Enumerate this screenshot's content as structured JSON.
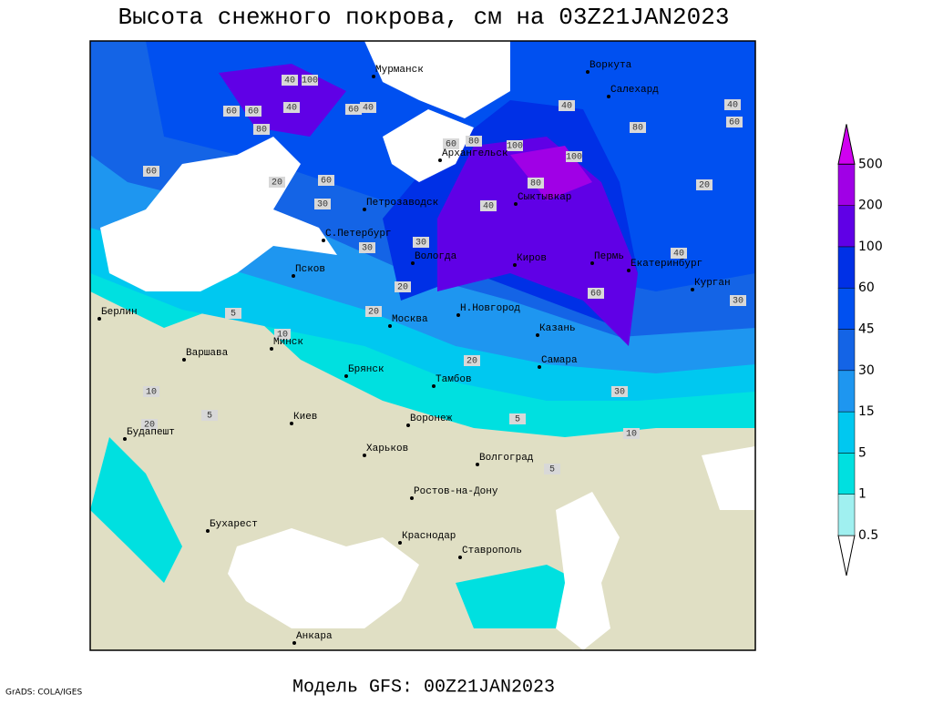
{
  "title": "Высота снежного покрова, см на 03Z21JAN2023",
  "footer": "Модель GFS: 00Z21JAN2023",
  "credit": "GrADS: COLA/IGES",
  "legend": {
    "levels": [
      0.5,
      1,
      5,
      15,
      30,
      45,
      60,
      100,
      200,
      500
    ],
    "colors": [
      "#ffffff",
      "#a0f0f0",
      "#00e0e0",
      "#00c8f0",
      "#1e96f0",
      "#1464e6",
      "#0050f0",
      "#0030e6",
      "#6000e6",
      "#a000e6",
      "#d000f0"
    ]
  },
  "cities": [
    "Мурманск",
    "Воркута",
    "Салехард",
    "Архангельск",
    "Сыктывкар",
    "Петрозаводск",
    "С.Петербург",
    "Вологда",
    "Киров",
    "Пермь",
    "Екатеринбург",
    "Курган",
    "Псков",
    "Берлин",
    "Минск",
    "Москва",
    "Н.Новгород",
    "Казань",
    "Варшава",
    "Брянск",
    "Тамбов",
    "Самара",
    "Киев",
    "Воронеж",
    "Будапешт",
    "Харьков",
    "Волгоград",
    "Ростов-на-Дону",
    "Бухарест",
    "Краснодар",
    "Ставрополь",
    "Анкара"
  ],
  "contour_labels": [
    40,
    100,
    60,
    60,
    80,
    60,
    20,
    60,
    30,
    40,
    60,
    40,
    60,
    80,
    100,
    100,
    80,
    40,
    80,
    40,
    60,
    20,
    40,
    30,
    30,
    30,
    20,
    5,
    10,
    10,
    5,
    20,
    20,
    30,
    10,
    5,
    5,
    20,
    40,
    60
  ]
}
